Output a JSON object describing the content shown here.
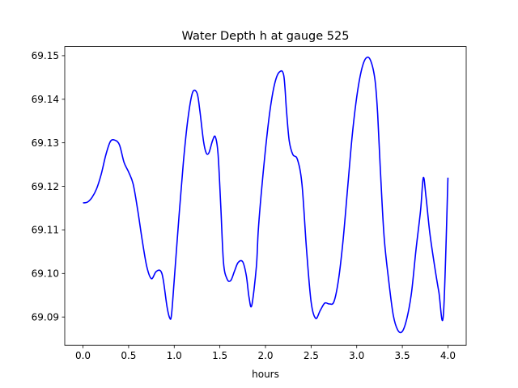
{
  "chart_data": {
    "type": "line",
    "title": "Water Depth h at gauge 525",
    "xlabel": "hours",
    "ylabel": "",
    "xlim": [
      -0.2,
      4.2
    ],
    "ylim": [
      69.0835,
      69.1521
    ],
    "xticks": [
      0.0,
      0.5,
      1.0,
      1.5,
      2.0,
      2.5,
      3.0,
      3.5,
      4.0
    ],
    "xtick_labels": [
      "0.0",
      "0.5",
      "1.0",
      "1.5",
      "2.0",
      "2.5",
      "3.0",
      "3.5",
      "4.0"
    ],
    "yticks": [
      69.09,
      69.1,
      69.11,
      69.12,
      69.13,
      69.14,
      69.15
    ],
    "ytick_labels": [
      "69.09",
      "69.10",
      "69.11",
      "69.12",
      "69.13",
      "69.14",
      "69.15"
    ],
    "grid": false,
    "series": [
      {
        "color": "#0000ff",
        "x": [
          0.0,
          0.05,
          0.1,
          0.15,
          0.2,
          0.25,
          0.3,
          0.35,
          0.4,
          0.45,
          0.5,
          0.55,
          0.6,
          0.65,
          0.7,
          0.75,
          0.8,
          0.85,
          0.88,
          0.92,
          0.95,
          0.97,
          1.0,
          1.05,
          1.1,
          1.15,
          1.2,
          1.25,
          1.28,
          1.32,
          1.35,
          1.38,
          1.42,
          1.45,
          1.48,
          1.51,
          1.54,
          1.58,
          1.62,
          1.66,
          1.7,
          1.75,
          1.79,
          1.82,
          1.85,
          1.9,
          1.92,
          1.95,
          2.0,
          2.05,
          2.1,
          2.15,
          2.2,
          2.23,
          2.26,
          2.3,
          2.35,
          2.4,
          2.45,
          2.5,
          2.55,
          2.6,
          2.65,
          2.7,
          2.75,
          2.8,
          2.85,
          2.9,
          2.95,
          3.0,
          3.05,
          3.1,
          3.15,
          3.2,
          3.23,
          3.26,
          3.3,
          3.35,
          3.4,
          3.45,
          3.5,
          3.55,
          3.6,
          3.65,
          3.7,
          3.73,
          3.76,
          3.8,
          3.85,
          3.9,
          3.95,
          4.0
        ],
        "y": [
          69.1162,
          69.1164,
          69.1175,
          69.1195,
          69.1228,
          69.1272,
          69.1303,
          69.1306,
          69.1295,
          69.1255,
          69.1233,
          69.1205,
          69.1145,
          69.1075,
          69.1015,
          69.0988,
          69.1004,
          69.1006,
          69.0985,
          69.0925,
          69.0898,
          69.0905,
          69.0985,
          69.1125,
          69.1255,
          69.1355,
          69.1415,
          69.1414,
          69.1375,
          69.1305,
          69.1277,
          69.1277,
          69.1305,
          69.1314,
          69.1275,
          69.1155,
          69.1025,
          69.0987,
          69.0984,
          69.1005,
          69.1025,
          69.1027,
          69.0995,
          69.0945,
          69.0927,
          69.1015,
          69.1095,
          69.1175,
          69.1285,
          69.1375,
          69.1435,
          69.1462,
          69.1455,
          69.1375,
          69.1305,
          69.1273,
          69.1262,
          69.1205,
          69.1055,
          69.0935,
          69.0897,
          69.0915,
          69.0932,
          69.093,
          69.0935,
          69.0985,
          69.1075,
          69.1195,
          69.1315,
          69.1405,
          69.1465,
          69.1494,
          69.149,
          69.1445,
          69.1365,
          69.1235,
          69.1085,
          69.0985,
          69.0905,
          69.087,
          69.0867,
          69.0897,
          69.0955,
          69.1055,
          69.1145,
          69.122,
          69.1175,
          69.1095,
          69.1022,
          69.0958,
          69.0905,
          69.122
        ]
      }
    ]
  }
}
